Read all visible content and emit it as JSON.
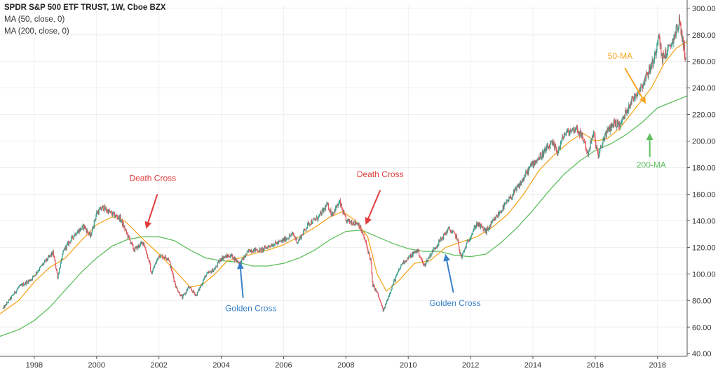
{
  "chart_data": {
    "type": "candlestick",
    "title": "SPDR S&P 500 ETF TRUST, 1W, Cboe BZX",
    "indicators": [
      {
        "label": "MA (50, close, 0)",
        "color": "#f5a623"
      },
      {
        "label": "MA (200, close, 0)",
        "color": "#5fbf5f"
      }
    ],
    "xlim": [
      1996.9,
      2018.95
    ],
    "ylim": [
      38,
      302
    ],
    "x_ticks": [
      {
        "label": "1998",
        "value": 1998
      },
      {
        "label": "2000",
        "value": 2000
      },
      {
        "label": "2002",
        "value": 2002
      },
      {
        "label": "2004",
        "value": 2004
      },
      {
        "label": "2006",
        "value": 2006
      },
      {
        "label": "2008",
        "value": 2008
      },
      {
        "label": "2010",
        "value": 2010
      },
      {
        "label": "2012",
        "value": 2012
      },
      {
        "label": "2014",
        "value": 2014
      },
      {
        "label": "2016",
        "value": 2016
      },
      {
        "label": "2018",
        "value": 2018
      }
    ],
    "y_ticks": [
      {
        "label": "40.00",
        "value": 40
      },
      {
        "label": "60.00",
        "value": 60
      },
      {
        "label": "80.00",
        "value": 80
      },
      {
        "label": "100.00",
        "value": 100
      },
      {
        "label": "120.00",
        "value": 120
      },
      {
        "label": "140.00",
        "value": 140
      },
      {
        "label": "160.00",
        "value": 160
      },
      {
        "label": "180.00",
        "value": 180
      },
      {
        "label": "200.00",
        "value": 200
      },
      {
        "label": "220.00",
        "value": 220
      },
      {
        "label": "240.00",
        "value": 240
      },
      {
        "label": "260.00",
        "value": 260
      },
      {
        "label": "280.00",
        "value": 280
      },
      {
        "label": "300.00",
        "value": 300
      }
    ],
    "price_keypoints": [
      [
        1997.0,
        74
      ],
      [
        1997.5,
        90
      ],
      [
        1997.9,
        96
      ],
      [
        1998.3,
        108
      ],
      [
        1998.6,
        116
      ],
      [
        1998.75,
        98
      ],
      [
        1998.95,
        118
      ],
      [
        1999.3,
        130
      ],
      [
        1999.6,
        136
      ],
      [
        1999.8,
        128
      ],
      [
        2000.0,
        146
      ],
      [
        2000.2,
        150
      ],
      [
        2000.5,
        145
      ],
      [
        2000.75,
        142
      ],
      [
        2000.9,
        134
      ],
      [
        2001.2,
        118
      ],
      [
        2001.5,
        124
      ],
      [
        2001.7,
        108
      ],
      [
        2001.75,
        100
      ],
      [
        2002.0,
        114
      ],
      [
        2002.3,
        112
      ],
      [
        2002.55,
        90
      ],
      [
        2002.75,
        82
      ],
      [
        2002.95,
        90
      ],
      [
        2003.2,
        84
      ],
      [
        2003.5,
        99
      ],
      [
        2003.8,
        104
      ],
      [
        2004.0,
        112
      ],
      [
        2004.3,
        114
      ],
      [
        2004.6,
        108
      ],
      [
        2004.9,
        118
      ],
      [
        2005.3,
        118
      ],
      [
        2005.6,
        122
      ],
      [
        2005.9,
        124
      ],
      [
        2006.3,
        130
      ],
      [
        2006.45,
        124
      ],
      [
        2006.8,
        138
      ],
      [
        2007.1,
        142
      ],
      [
        2007.4,
        152
      ],
      [
        2007.55,
        145
      ],
      [
        2007.8,
        154
      ],
      [
        2008.0,
        140
      ],
      [
        2008.4,
        138
      ],
      [
        2008.6,
        126
      ],
      [
        2008.8,
        110
      ],
      [
        2008.85,
        92
      ],
      [
        2009.0,
        86
      ],
      [
        2009.2,
        72
      ],
      [
        2009.5,
        92
      ],
      [
        2009.8,
        108
      ],
      [
        2010.1,
        114
      ],
      [
        2010.3,
        118
      ],
      [
        2010.5,
        106
      ],
      [
        2010.8,
        118
      ],
      [
        2011.3,
        134
      ],
      [
        2011.55,
        128
      ],
      [
        2011.7,
        112
      ],
      [
        2011.9,
        124
      ],
      [
        2012.2,
        138
      ],
      [
        2012.5,
        132
      ],
      [
        2012.8,
        142
      ],
      [
        2013.3,
        158
      ],
      [
        2013.6,
        168
      ],
      [
        2013.95,
        182
      ],
      [
        2014.3,
        190
      ],
      [
        2014.6,
        198
      ],
      [
        2014.8,
        192
      ],
      [
        2015.0,
        205
      ],
      [
        2015.4,
        210
      ],
      [
        2015.65,
        200
      ],
      [
        2015.75,
        190
      ],
      [
        2015.95,
        206
      ],
      [
        2016.1,
        188
      ],
      [
        2016.3,
        204
      ],
      [
        2016.6,
        214
      ],
      [
        2016.8,
        212
      ],
      [
        2017.1,
        228
      ],
      [
        2017.5,
        242
      ],
      [
        2017.9,
        262
      ],
      [
        2018.05,
        284
      ],
      [
        2018.12,
        262
      ],
      [
        2018.4,
        270
      ],
      [
        2018.7,
        290
      ],
      [
        2018.85,
        270
      ],
      [
        2018.92,
        258
      ]
    ],
    "ma50_keypoints": [
      [
        1996.9,
        70
      ],
      [
        1997.5,
        80
      ],
      [
        1998.0,
        94
      ],
      [
        1998.5,
        105
      ],
      [
        1999.0,
        112
      ],
      [
        1999.5,
        125
      ],
      [
        2000.0,
        137
      ],
      [
        2000.5,
        143
      ],
      [
        2000.9,
        140
      ],
      [
        2001.5,
        126
      ],
      [
        2002.0,
        115
      ],
      [
        2002.5,
        103
      ],
      [
        2003.0,
        90
      ],
      [
        2003.4,
        92
      ],
      [
        2003.8,
        100
      ],
      [
        2004.2,
        110
      ],
      [
        2004.6,
        112
      ],
      [
        2005.0,
        115
      ],
      [
        2005.5,
        118
      ],
      [
        2006.0,
        122
      ],
      [
        2006.5,
        128
      ],
      [
        2007.0,
        135
      ],
      [
        2007.5,
        143
      ],
      [
        2007.9,
        147
      ],
      [
        2008.3,
        140
      ],
      [
        2008.7,
        128
      ],
      [
        2009.0,
        100
      ],
      [
        2009.3,
        87
      ],
      [
        2009.7,
        95
      ],
      [
        2010.2,
        108
      ],
      [
        2010.7,
        110
      ],
      [
        2011.2,
        120
      ],
      [
        2011.7,
        124
      ],
      [
        2012.2,
        128
      ],
      [
        2012.7,
        135
      ],
      [
        2013.2,
        145
      ],
      [
        2013.7,
        160
      ],
      [
        2014.2,
        178
      ],
      [
        2014.7,
        190
      ],
      [
        2015.2,
        200
      ],
      [
        2015.6,
        206
      ],
      [
        2016.0,
        200
      ],
      [
        2016.4,
        202
      ],
      [
        2016.8,
        210
      ],
      [
        2017.3,
        225
      ],
      [
        2017.8,
        240
      ],
      [
        2018.2,
        258
      ],
      [
        2018.6,
        270
      ],
      [
        2018.95,
        275
      ]
    ],
    "ma200_keypoints": [
      [
        1996.9,
        53
      ],
      [
        1997.5,
        58
      ],
      [
        1998.0,
        65
      ],
      [
        1998.5,
        75
      ],
      [
        1999.0,
        88
      ],
      [
        1999.5,
        101
      ],
      [
        2000.0,
        112
      ],
      [
        2000.5,
        121
      ],
      [
        2001.0,
        126
      ],
      [
        2001.5,
        128
      ],
      [
        2002.0,
        128
      ],
      [
        2002.5,
        125
      ],
      [
        2003.0,
        118
      ],
      [
        2003.5,
        112
      ],
      [
        2004.0,
        110
      ],
      [
        2004.5,
        109
      ],
      [
        2005.0,
        106
      ],
      [
        2005.5,
        106
      ],
      [
        2006.0,
        108
      ],
      [
        2006.5,
        112
      ],
      [
        2007.0,
        118
      ],
      [
        2007.5,
        126
      ],
      [
        2008.0,
        132
      ],
      [
        2008.5,
        133
      ],
      [
        2009.0,
        128
      ],
      [
        2009.5,
        123
      ],
      [
        2010.0,
        119
      ],
      [
        2010.5,
        117
      ],
      [
        2011.0,
        117
      ],
      [
        2011.5,
        114
      ],
      [
        2012.0,
        113
      ],
      [
        2012.5,
        115
      ],
      [
        2013.0,
        124
      ],
      [
        2013.5,
        135
      ],
      [
        2014.0,
        148
      ],
      [
        2014.5,
        162
      ],
      [
        2015.0,
        175
      ],
      [
        2015.5,
        185
      ],
      [
        2016.0,
        193
      ],
      [
        2016.5,
        198
      ],
      [
        2017.0,
        205
      ],
      [
        2017.5,
        214
      ],
      [
        2018.0,
        225
      ],
      [
        2018.95,
        234
      ]
    ],
    "annotations": [
      {
        "text": "Death Cross",
        "color": "#e03c3c",
        "label_x": 2001.8,
        "label_y": 170,
        "arrow_from": [
          2001.95,
          160
        ],
        "arrow_to": [
          2001.6,
          135
        ]
      },
      {
        "text": "Golden Cross",
        "color": "#3a80c9",
        "label_x": 2004.95,
        "label_y": 72,
        "arrow_from": [
          2004.7,
          82
        ],
        "arrow_to": [
          2004.6,
          108
        ]
      },
      {
        "text": "Death Cross",
        "color": "#e03c3c",
        "label_x": 2009.1,
        "label_y": 173,
        "arrow_from": [
          2009.1,
          163
        ],
        "arrow_to": [
          2008.65,
          138
        ]
      },
      {
        "text": "Golden Cross",
        "color": "#3a80c9",
        "label_x": 2011.5,
        "label_y": 76,
        "arrow_from": [
          2011.45,
          86
        ],
        "arrow_to": [
          2011.2,
          114
        ]
      },
      {
        "text": "50-MA",
        "color": "#f5a623",
        "label_x": 2016.8,
        "label_y": 262,
        "arrow_from": [
          2016.95,
          255
        ],
        "arrow_to": [
          2017.6,
          229
        ]
      },
      {
        "text": "200-MA",
        "color": "#5fbf5f",
        "label_x": 2017.8,
        "label_y": 180,
        "arrow_from": [
          2017.75,
          188
        ],
        "arrow_to": [
          2017.75,
          205
        ]
      }
    ]
  }
}
